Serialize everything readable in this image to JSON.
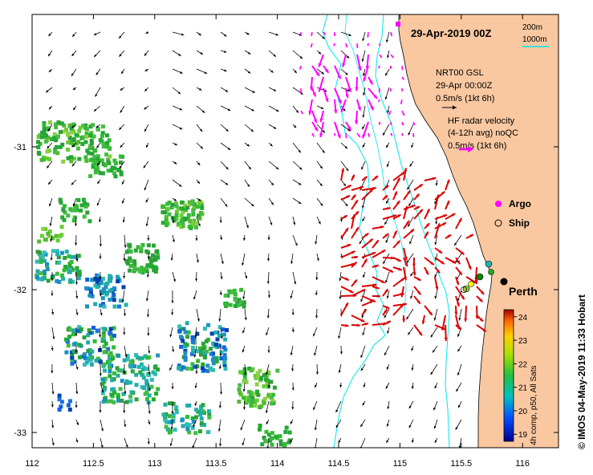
{
  "title": "29-Apr-2019 00Z",
  "bathy_legend": {
    "contour_200": "200m",
    "contour_1000": "1000m"
  },
  "model_label": {
    "line1": "NRT00 GSL",
    "line2": "29-Apr 00:00Z",
    "scale": "0.5m/s (1kt 6h)"
  },
  "radar_label": {
    "line1": "HF radar velocity",
    "line2": "(4-12h avg) noQC",
    "scale": "0.5m/s (1kt 6h)"
  },
  "markers": {
    "argo": "Argo",
    "ship": "Ship"
  },
  "city": "Perth",
  "x_ticks": [
    "112",
    "112.5",
    "113",
    "113.5",
    "114",
    "114.5",
    "115",
    "115.5",
    "116"
  ],
  "y_ticks": [
    "-31",
    "-32",
    "-33"
  ],
  "colorbar": {
    "ticks": [
      "24",
      "23",
      "22",
      "21",
      "20",
      "19"
    ],
    "label": "4h comp, p50, All Sats",
    "range": [
      18.7,
      24.3
    ]
  },
  "credit": "© IMOS 04-May-2019 11:33 Hobart",
  "colors": {
    "land": "#fac8a0",
    "contour": "#00e5ee",
    "model_arrow": "#000000",
    "radar_arrow": "#ff00ff",
    "hf_arrow": "#dd0000"
  }
}
